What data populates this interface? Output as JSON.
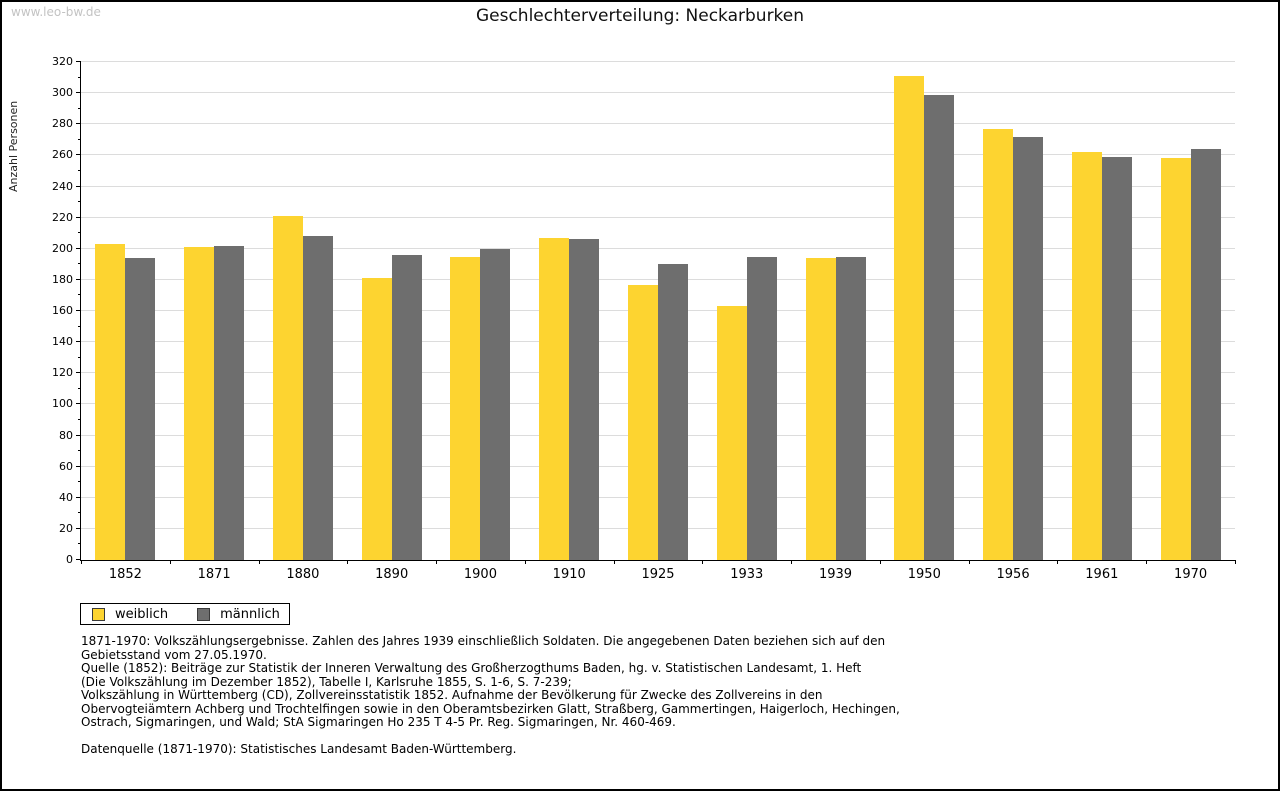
{
  "page": {
    "watermark": "www.leo-bw.de",
    "title": "Geschlechterverteilung: Neckarburken"
  },
  "chart_data": {
    "type": "bar",
    "title": "Geschlechterverteilung: Neckarburken",
    "xlabel": "",
    "ylabel": "Anzahl Personen",
    "categories": [
      "1852",
      "1871",
      "1880",
      "1890",
      "1900",
      "1910",
      "1925",
      "1933",
      "1939",
      "1950",
      "1956",
      "1961",
      "1970"
    ],
    "series": [
      {
        "name": "weiblich",
        "color": "#FDD430",
        "values": [
          203,
          201,
          221,
          181,
          195,
          207,
          177,
          163,
          194,
          311,
          277,
          262,
          258
        ]
      },
      {
        "name": "männlich",
        "color": "#6E6E6E",
        "values": [
          194,
          202,
          208,
          196,
          200,
          206,
          190,
          195,
          195,
          299,
          272,
          259,
          264
        ]
      }
    ],
    "ylim": [
      0,
      320
    ],
    "ytick_step": 20,
    "ytick_minor_step": 10,
    "grid": true,
    "gridline_color": "#dcdcdc",
    "legend_position": "below-left"
  },
  "legend": {
    "items": [
      {
        "label": "weiblich",
        "color": "#FDD430"
      },
      {
        "label": "männlich",
        "color": "#6E6E6E"
      }
    ]
  },
  "footnotes": {
    "lines": [
      "1871-1970: Volkszählungsergebnisse. Zahlen des Jahres 1939 einschließlich Soldaten. Die angegebenen Daten beziehen sich auf den",
      "Gebietsstand vom 27.05.1970.",
      "Quelle (1852): Beiträge zur Statistik der Inneren Verwaltung des Großherzogthums Baden, hg. v. Statistischen Landesamt, 1. Heft",
      "(Die Volkszählung im Dezember 1852), Tabelle I, Karlsruhe 1855, S. 1-6, S. 7-239;",
      "Volkszählung in Württemberg (CD), Zollvereinsstatistik 1852. Aufnahme der Bevölkerung für Zwecke des Zollvereins in den",
      "Obervogteiämtern Achberg und Trochtelfingen sowie in den Oberamtsbezirken Glatt, Straßberg, Gammertingen, Haigerloch, Hechingen,",
      "Ostrach, Sigmaringen, und Wald; StA Sigmaringen Ho 235 T 4-5 Pr. Reg. Sigmaringen, Nr. 460-469."
    ],
    "datasource": "Datenquelle (1871-1970): Statistisches Landesamt Baden-Württemberg."
  }
}
